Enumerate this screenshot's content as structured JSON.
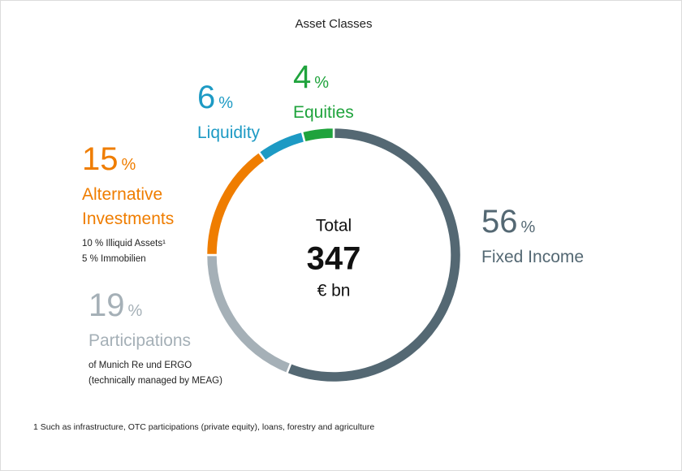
{
  "chart_data": {
    "type": "donut",
    "title": "Asset Classes",
    "categories": [
      "Fixed Income",
      "Participations",
      "Alternative Investments",
      "Liquidity",
      "Equities"
    ],
    "values": [
      56,
      19,
      15,
      6,
      4
    ],
    "unit": "%",
    "colors": [
      "#546873",
      "#a5b0b7",
      "#ef7d00",
      "#1d9ac4",
      "#1fa33c"
    ],
    "notes": [
      [],
      [
        "of Munich Re und ERGO",
        "(technically managed by MEAG)"
      ],
      [
        "10 % Illiquid Assets¹",
        "5 % Immobilien"
      ],
      [],
      []
    ],
    "center": {
      "label": "Total",
      "value": 347,
      "unit": "€ bn"
    },
    "footnote": "1  Such as infrastructure, OTC participations (private equity), loans, forestry and agriculture"
  }
}
